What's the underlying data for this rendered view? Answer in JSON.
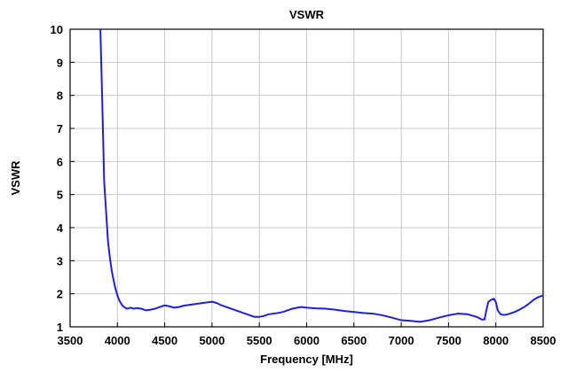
{
  "chart_data": {
    "type": "line",
    "title": "VSWR",
    "xlabel": "Frequency [MHz]",
    "ylabel": "VSWR",
    "xlim": [
      3500,
      8500
    ],
    "ylim": [
      1,
      10
    ],
    "xticks": [
      3500,
      4000,
      4500,
      5000,
      5500,
      6000,
      6500,
      7000,
      7500,
      8000,
      8500
    ],
    "yticks": [
      1,
      2,
      3,
      4,
      5,
      6,
      7,
      8,
      9,
      10
    ],
    "grid": true,
    "legend": "none",
    "series": [
      {
        "color": "#1f1fe0",
        "x": [
          3820,
          3840,
          3860,
          3880,
          3900,
          3920,
          3940,
          3960,
          3980,
          4000,
          4020,
          4040,
          4060,
          4080,
          4100,
          4120,
          4140,
          4160,
          4180,
          4200,
          4250,
          4300,
          4350,
          4400,
          4450,
          4500,
          4550,
          4600,
          4650,
          4700,
          4750,
          4800,
          4850,
          4900,
          4950,
          5000,
          5050,
          5100,
          5150,
          5200,
          5250,
          5300,
          5350,
          5400,
          5450,
          5500,
          5550,
          5600,
          5650,
          5700,
          5750,
          5800,
          5850,
          5900,
          5950,
          6000,
          6100,
          6200,
          6300,
          6400,
          6500,
          6600,
          6700,
          6800,
          6900,
          7000,
          7100,
          7200,
          7300,
          7400,
          7500,
          7600,
          7700,
          7800,
          7850,
          7880,
          7900,
          7920,
          7950,
          7980,
          8000,
          8020,
          8050,
          8080,
          8100,
          8150,
          8200,
          8250,
          8300,
          8350,
          8400,
          8450,
          8500
        ],
        "y": [
          10.0,
          7.8,
          5.4,
          4.5,
          3.6,
          3.1,
          2.7,
          2.4,
          2.15,
          1.95,
          1.8,
          1.7,
          1.62,
          1.58,
          1.55,
          1.56,
          1.58,
          1.56,
          1.55,
          1.57,
          1.55,
          1.5,
          1.52,
          1.55,
          1.6,
          1.65,
          1.62,
          1.58,
          1.6,
          1.64,
          1.66,
          1.68,
          1.7,
          1.72,
          1.74,
          1.76,
          1.72,
          1.65,
          1.6,
          1.55,
          1.5,
          1.45,
          1.4,
          1.35,
          1.3,
          1.3,
          1.33,
          1.38,
          1.4,
          1.42,
          1.45,
          1.5,
          1.55,
          1.58,
          1.6,
          1.58,
          1.56,
          1.55,
          1.52,
          1.48,
          1.45,
          1.42,
          1.4,
          1.35,
          1.28,
          1.2,
          1.18,
          1.15,
          1.2,
          1.28,
          1.35,
          1.4,
          1.38,
          1.3,
          1.22,
          1.22,
          1.5,
          1.75,
          1.82,
          1.85,
          1.75,
          1.5,
          1.38,
          1.36,
          1.36,
          1.4,
          1.45,
          1.52,
          1.6,
          1.7,
          1.82,
          1.9,
          1.95
        ]
      }
    ]
  }
}
